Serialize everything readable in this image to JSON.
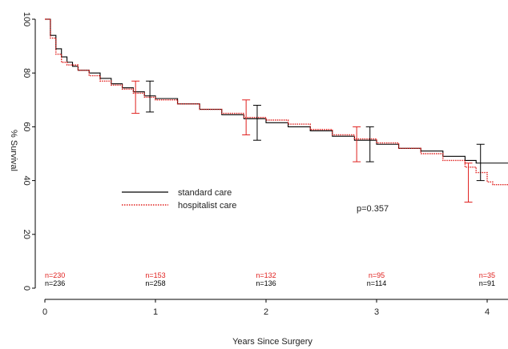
{
  "chart_data": {
    "type": "line",
    "title": "",
    "xlabel": "Years Since Surgery",
    "ylabel": "% Survival",
    "xlim": [
      0,
      4.2
    ],
    "ylim": [
      0,
      100
    ],
    "xticks": [
      "0",
      "1",
      "2",
      "3",
      "4"
    ],
    "yticks": [
      "0",
      "20",
      "40",
      "60",
      "80",
      "100"
    ],
    "grid": false,
    "legend_position": "center-left",
    "annotation": "p=0.357",
    "series": [
      {
        "name": "standard care",
        "color": "#000000",
        "style": "solid",
        "x": [
          0,
          0.05,
          0.1,
          0.15,
          0.2,
          0.25,
          0.3,
          0.4,
          0.5,
          0.6,
          0.7,
          0.8,
          0.9,
          1.0,
          1.2,
          1.4,
          1.6,
          1.8,
          2.0,
          2.2,
          2.4,
          2.6,
          2.8,
          3.0,
          3.2,
          3.4,
          3.6,
          3.8,
          3.9,
          4.2
        ],
        "y": [
          100,
          94,
          89,
          86,
          84,
          82.5,
          81,
          80,
          78,
          76,
          74.5,
          73,
          71.5,
          70.5,
          68.5,
          66.5,
          64.5,
          63,
          61.5,
          60,
          58.5,
          56.5,
          55,
          53.5,
          52,
          51,
          49,
          47.5,
          46.5,
          46.5
        ]
      },
      {
        "name": "hospitalist care",
        "color": "#e0201e",
        "style": "dotted",
        "x": [
          0,
          0.05,
          0.1,
          0.15,
          0.2,
          0.3,
          0.4,
          0.5,
          0.6,
          0.7,
          0.8,
          0.9,
          1.0,
          1.2,
          1.4,
          1.6,
          1.8,
          2.0,
          2.2,
          2.4,
          2.6,
          2.8,
          3.0,
          3.2,
          3.4,
          3.6,
          3.8,
          3.9,
          4.0,
          4.05,
          4.2
        ],
        "y": [
          100,
          93,
          87,
          84,
          83,
          81,
          79,
          77,
          75.5,
          74,
          72.5,
          71,
          70,
          68.5,
          66.5,
          65,
          63.5,
          62.5,
          61,
          59,
          57,
          55.5,
          54,
          52,
          50,
          47.5,
          45,
          43,
          39.5,
          38.5,
          38.5
        ]
      }
    ],
    "error_bars": [
      {
        "series": "hospitalist care",
        "x": 0.82,
        "y": 71,
        "low": 65,
        "high": 77
      },
      {
        "series": "standard care",
        "x": 0.95,
        "y": 71.5,
        "low": 65.5,
        "high": 77
      },
      {
        "series": "hospitalist care",
        "x": 1.82,
        "y": 63.5,
        "low": 57,
        "high": 70
      },
      {
        "series": "standard care",
        "x": 1.92,
        "y": 61.5,
        "low": 55,
        "high": 68
      },
      {
        "series": "hospitalist care",
        "x": 2.82,
        "y": 53.5,
        "low": 47,
        "high": 60
      },
      {
        "series": "standard care",
        "x": 2.94,
        "y": 53.5,
        "low": 47,
        "high": 60
      },
      {
        "series": "hospitalist care",
        "x": 3.83,
        "y": 39.5,
        "low": 32,
        "high": 46.5
      },
      {
        "series": "standard care",
        "x": 3.94,
        "y": 46.5,
        "low": 40,
        "high": 53.5
      }
    ],
    "at_risk": {
      "x": [
        0,
        1,
        2,
        3,
        4
      ],
      "hospitalist care": [
        "n=230",
        "n=153",
        "n=132",
        "n=95",
        "n=35"
      ],
      "standard care": [
        "n=236",
        "n=258",
        "n=136",
        "n=114",
        "n=91"
      ]
    }
  }
}
